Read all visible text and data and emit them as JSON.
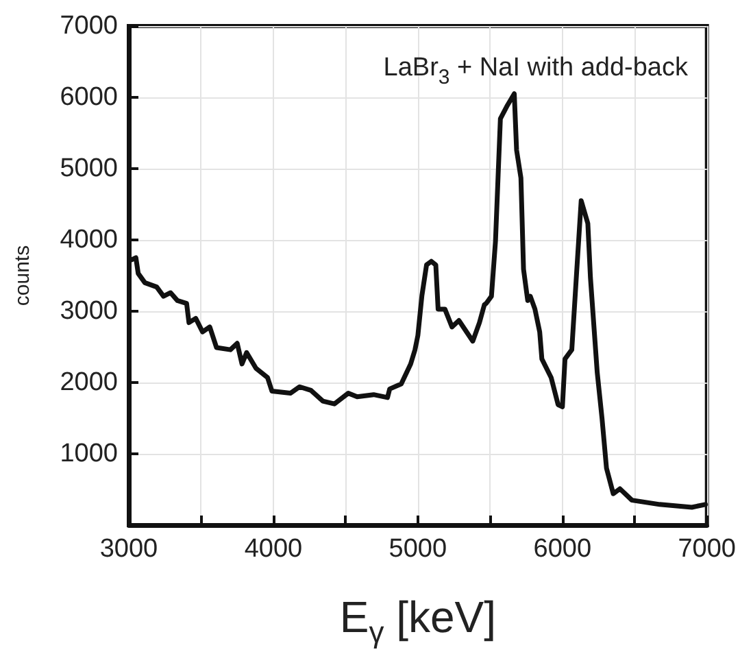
{
  "chart_data": {
    "type": "line",
    "xlabel": "E$_{γ}$ [keV]",
    "ylabel": "counts",
    "annotations": [
      "LaBr$_{3}$ + NaI with add-back"
    ],
    "xlim": [
      3000,
      7000
    ],
    "ylim": [
      0,
      7000
    ],
    "xticks": [
      3000,
      {
        "value": 3500,
        "label": null
      },
      4000,
      {
        "value": 4500,
        "label": null
      },
      5000,
      {
        "value": 5500,
        "label": null
      },
      6000,
      {
        "value": 6500,
        "label": null
      },
      7000
    ],
    "yticks": [
      1000,
      2000,
      3000,
      4000,
      5000,
      6000,
      7000
    ],
    "grid": true,
    "marker": "none",
    "line_style": "solid",
    "series": [
      {
        "color": "#111111",
        "x": [
          3017,
          3049,
          3065,
          3111,
          3193,
          3240,
          3289,
          3336,
          3400,
          3416,
          3463,
          3510,
          3560,
          3607,
          3703,
          3750,
          3783,
          3815,
          3880,
          3960,
          3990,
          4118,
          4182,
          4260,
          4343,
          4422,
          4518,
          4580,
          4694,
          4790,
          4805,
          4885,
          4950,
          4980,
          5000,
          5028,
          5060,
          5093,
          5124,
          5140,
          5187,
          5236,
          5284,
          5380,
          5426,
          5460,
          5473,
          5509,
          5537,
          5571,
          5620,
          5667,
          5683,
          5713,
          5731,
          5760,
          5778,
          5810,
          5843,
          5858,
          5922,
          5970,
          6000,
          6018,
          6065,
          6098,
          6130,
          6176,
          6194,
          6241,
          6274,
          6305,
          6352,
          6398,
          6481,
          6673,
          6896,
          6990
        ],
        "values": [
          3720,
          3750,
          3530,
          3400,
          3340,
          3210,
          3260,
          3150,
          3110,
          2840,
          2900,
          2710,
          2780,
          2490,
          2460,
          2550,
          2260,
          2420,
          2200,
          2070,
          1880,
          1850,
          1940,
          1890,
          1740,
          1700,
          1850,
          1800,
          1830,
          1790,
          1910,
          1980,
          2260,
          2460,
          2660,
          3220,
          3650,
          3700,
          3650,
          3030,
          3030,
          2780,
          2870,
          2580,
          2840,
          3090,
          3110,
          3210,
          3980,
          5700,
          5890,
          6050,
          5260,
          4870,
          3590,
          3150,
          3210,
          3030,
          2710,
          2330,
          2070,
          1690,
          1660,
          2330,
          2460,
          3530,
          4550,
          4230,
          3470,
          2140,
          1500,
          800,
          440,
          510,
          350,
          290,
          250,
          290
        ]
      }
    ]
  }
}
